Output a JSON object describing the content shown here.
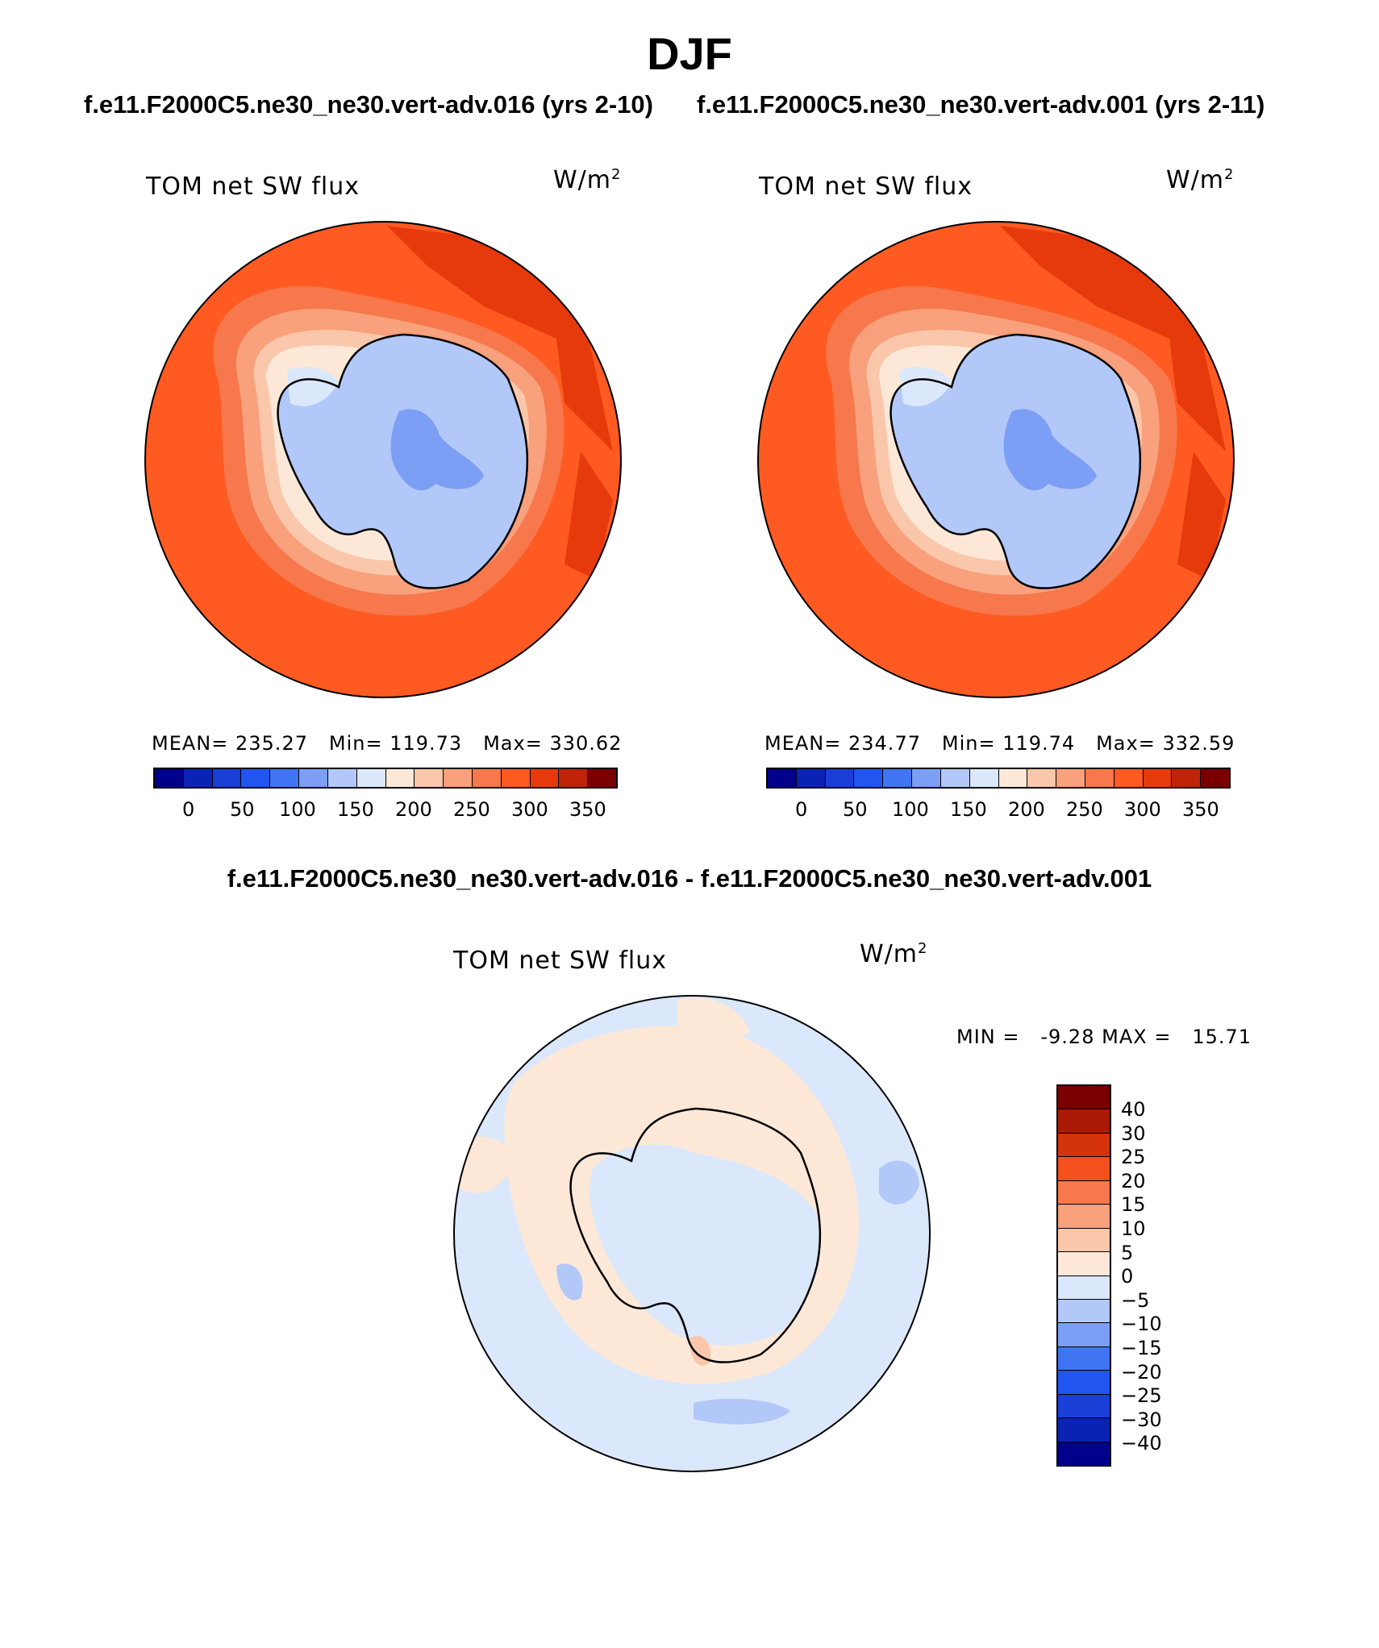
{
  "title": "DJF",
  "panels": [
    {
      "case_label": "f.e11.F2000C5.ne30_ne30.vert-adv.016 (yrs 2-10)",
      "variable": "TOM net SW flux",
      "units": "W/m",
      "units_sup": "2",
      "stats": {
        "mean_label": "MEAN=",
        "mean": "235.27",
        "min_label": "Min=",
        "min": "119.73",
        "max_label": "Max=",
        "max": "330.62"
      }
    },
    {
      "case_label": "f.e11.F2000C5.ne30_ne30.vert-adv.001 (yrs 2-11)",
      "variable": "TOM net SW flux",
      "units": "W/m",
      "units_sup": "2",
      "stats": {
        "mean_label": "MEAN=",
        "mean": "234.77",
        "min_label": "Min=",
        "min": "119.74",
        "max_label": "Max=",
        "max": "332.59"
      }
    }
  ],
  "field_colorbar": {
    "colors": [
      "#00008b",
      "#0a23b4",
      "#1a3fd6",
      "#2055f0",
      "#3f74f2",
      "#7c9ff5",
      "#b2c8f9",
      "#dbe8fb",
      "#fde8d8",
      "#fbc7aa",
      "#f9a07c",
      "#f6784c",
      "#ff5a22",
      "#e63a0c",
      "#c02408",
      "#7a0000"
    ],
    "ticks": [
      "0",
      "50",
      "100",
      "150",
      "200",
      "250",
      "300",
      "350"
    ]
  },
  "difference_panel": {
    "case_label": "f.e11.F2000C5.ne30_ne30.vert-adv.016 - f.e11.F2000C5.ne30_ne30.vert-adv.001",
    "variable": "TOM net SW flux",
    "units": "W/m",
    "units_sup": "2",
    "min_label": "MIN =",
    "min": "-9.28",
    "max_label": "MAX =",
    "max": "15.71"
  },
  "diff_colorbar": {
    "colors_top_to_bottom": [
      "#7a0000",
      "#aa1a06",
      "#d4330c",
      "#f4501e",
      "#f6784c",
      "#f9a07c",
      "#fbc7aa",
      "#fde8d8",
      "#dbe8fb",
      "#b2c8f9",
      "#7c9ff5",
      "#3f74f2",
      "#2055f0",
      "#1a3fd6",
      "#0a23b4",
      "#00008b"
    ],
    "ticks_top_to_bottom": [
      "40",
      "30",
      "25",
      "20",
      "15",
      "10",
      "5",
      "0",
      "−5",
      "−10",
      "−15",
      "−20",
      "−25",
      "−30",
      "−40"
    ]
  },
  "map_colors": {
    "ocean": "#ff5a22",
    "ocean_dark": "#e63a0c",
    "coast1": "#f6784c",
    "coast2": "#f9a07c",
    "coast3": "#fbc7aa",
    "coast4": "#fde8d8",
    "ice": "#b2c8f9",
    "ice_light": "#dbe8fb",
    "ice_dark": "#7c9ff5",
    "diff_neg": "#dbe8fb",
    "diff_pos": "#fde8d8",
    "diff_neg2": "#b2c8f9",
    "diff_pos2": "#fbc7aa"
  }
}
